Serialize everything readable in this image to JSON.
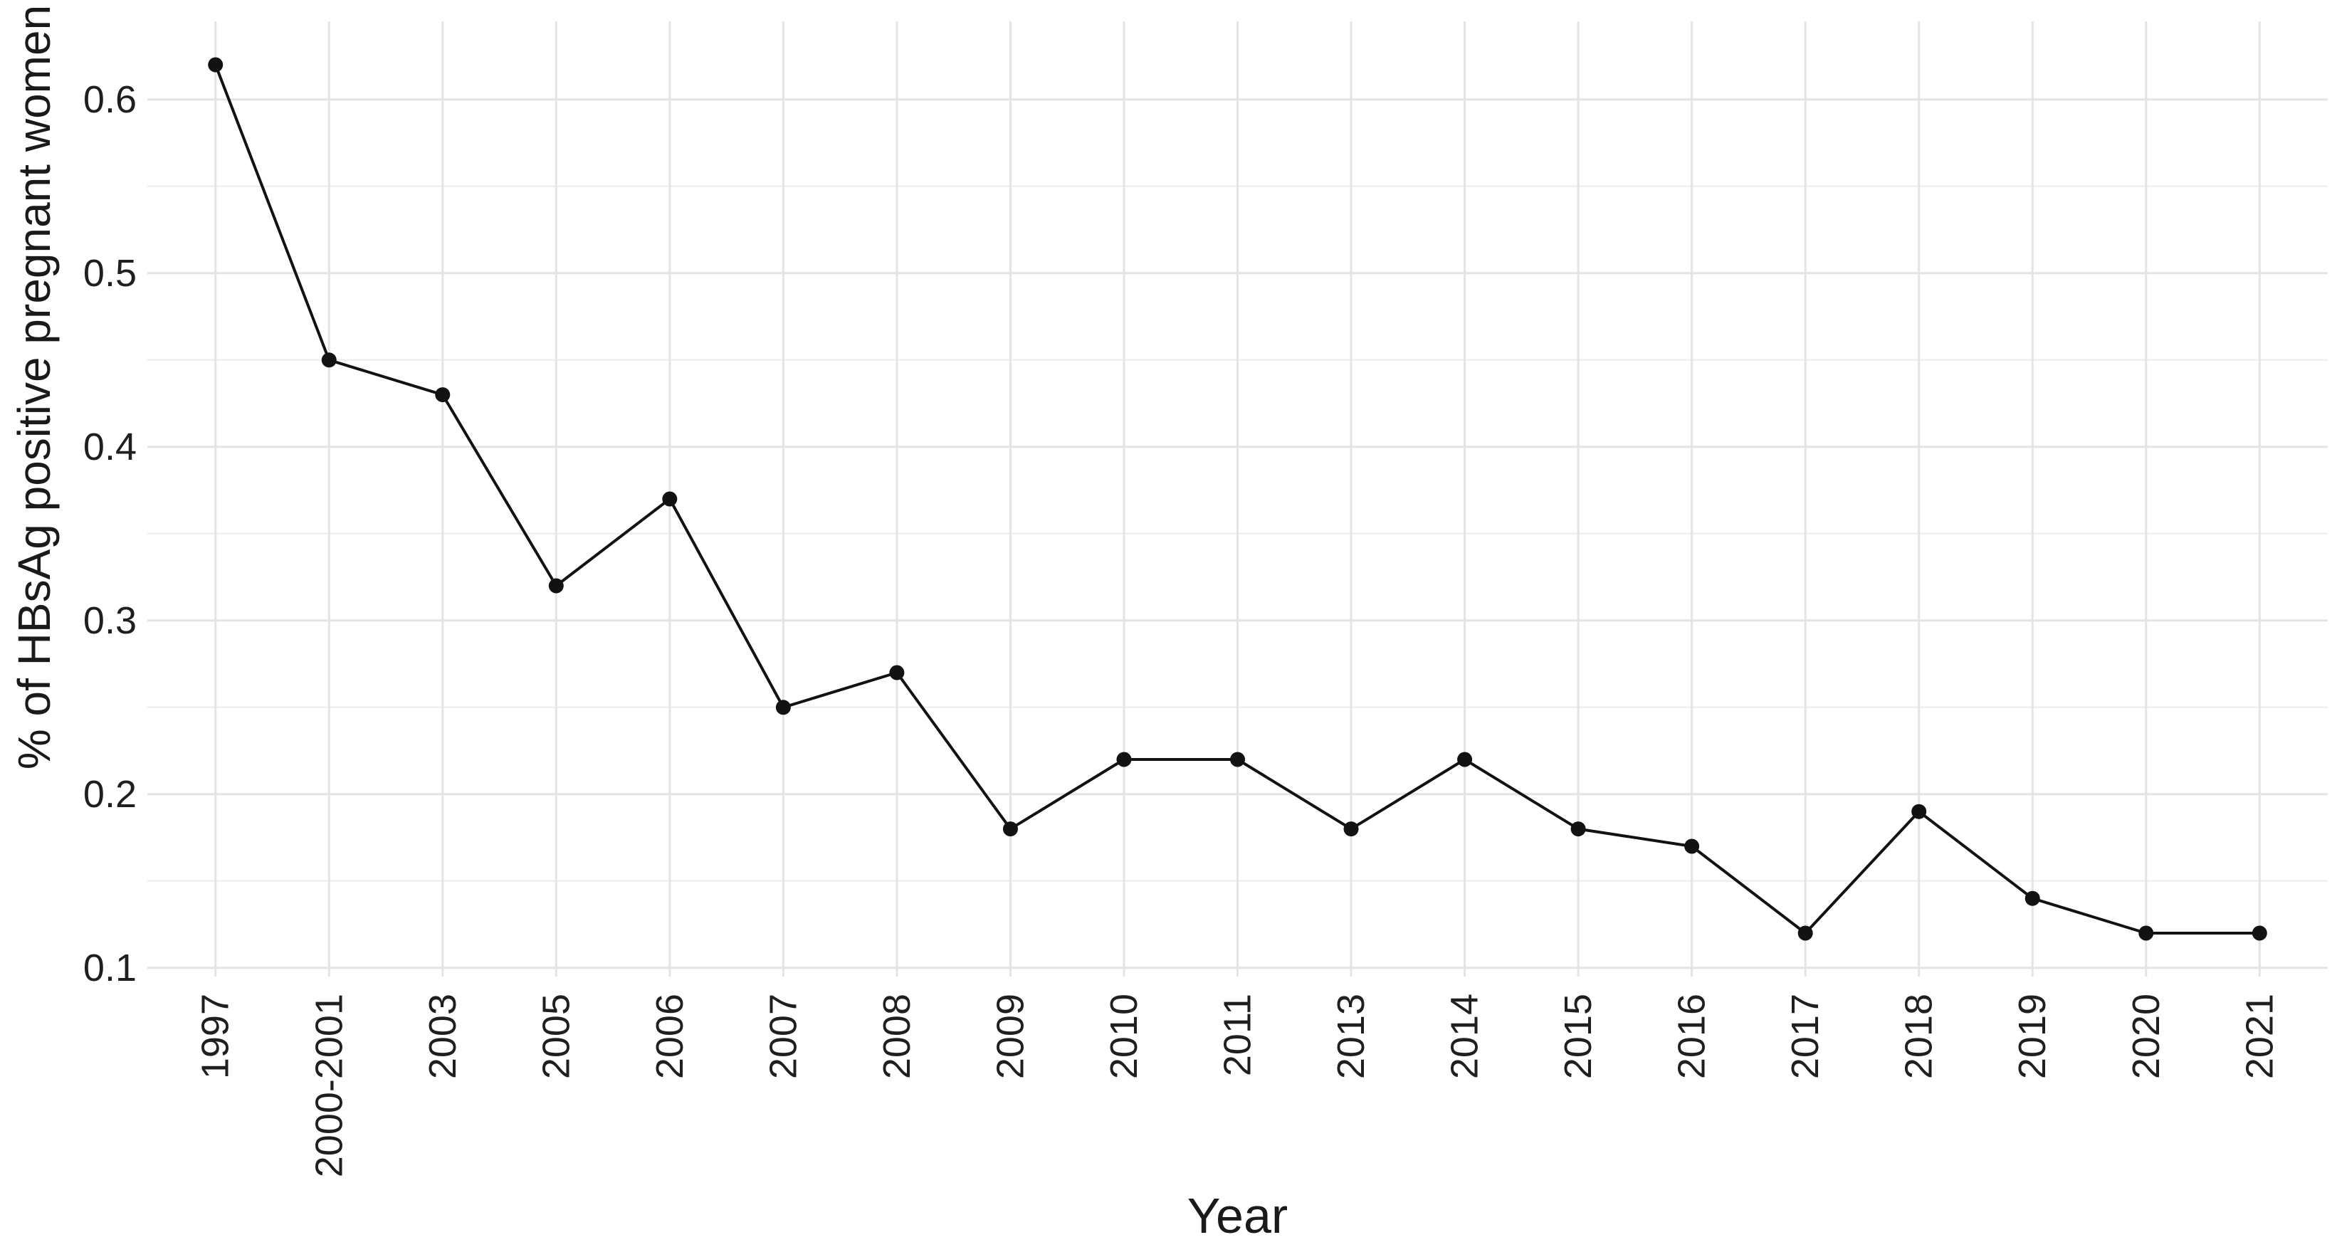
{
  "figure": {
    "background": "#ffffff"
  },
  "chart_data": {
    "type": "line",
    "title": "",
    "xlabel": "Year",
    "ylabel": "% of HBsAg positive pregnant women",
    "categories": [
      "1997",
      "2000-2001",
      "2003",
      "2005",
      "2006",
      "2007",
      "2008",
      "2009",
      "2010",
      "2011",
      "2013",
      "2014",
      "2015",
      "2016",
      "2017",
      "2018",
      "2019",
      "2020",
      "2021"
    ],
    "values": [
      0.62,
      0.45,
      0.43,
      0.32,
      0.37,
      0.25,
      0.27,
      0.18,
      0.22,
      0.22,
      0.18,
      0.22,
      0.18,
      0.17,
      0.12,
      0.19,
      0.14,
      0.12,
      0.12
    ],
    "y_ticks": [
      0.1,
      0.2,
      0.3,
      0.4,
      0.5,
      0.6
    ],
    "y_tick_labels": [
      "0.1",
      "0.2",
      "0.3",
      "0.4",
      "0.5",
      "0.6"
    ],
    "y_minor_ticks": [
      0.15,
      0.25,
      0.35,
      0.45,
      0.55
    ],
    "ylim": [
      0.095,
      0.645
    ],
    "grid": true,
    "legend": "none",
    "x_label_rotation": -90,
    "colors": {
      "line": "#121212",
      "point": "#121212",
      "grid_major": "#e4e4e4",
      "grid_minor": "#efefef",
      "text": "#1f1f1f"
    }
  }
}
